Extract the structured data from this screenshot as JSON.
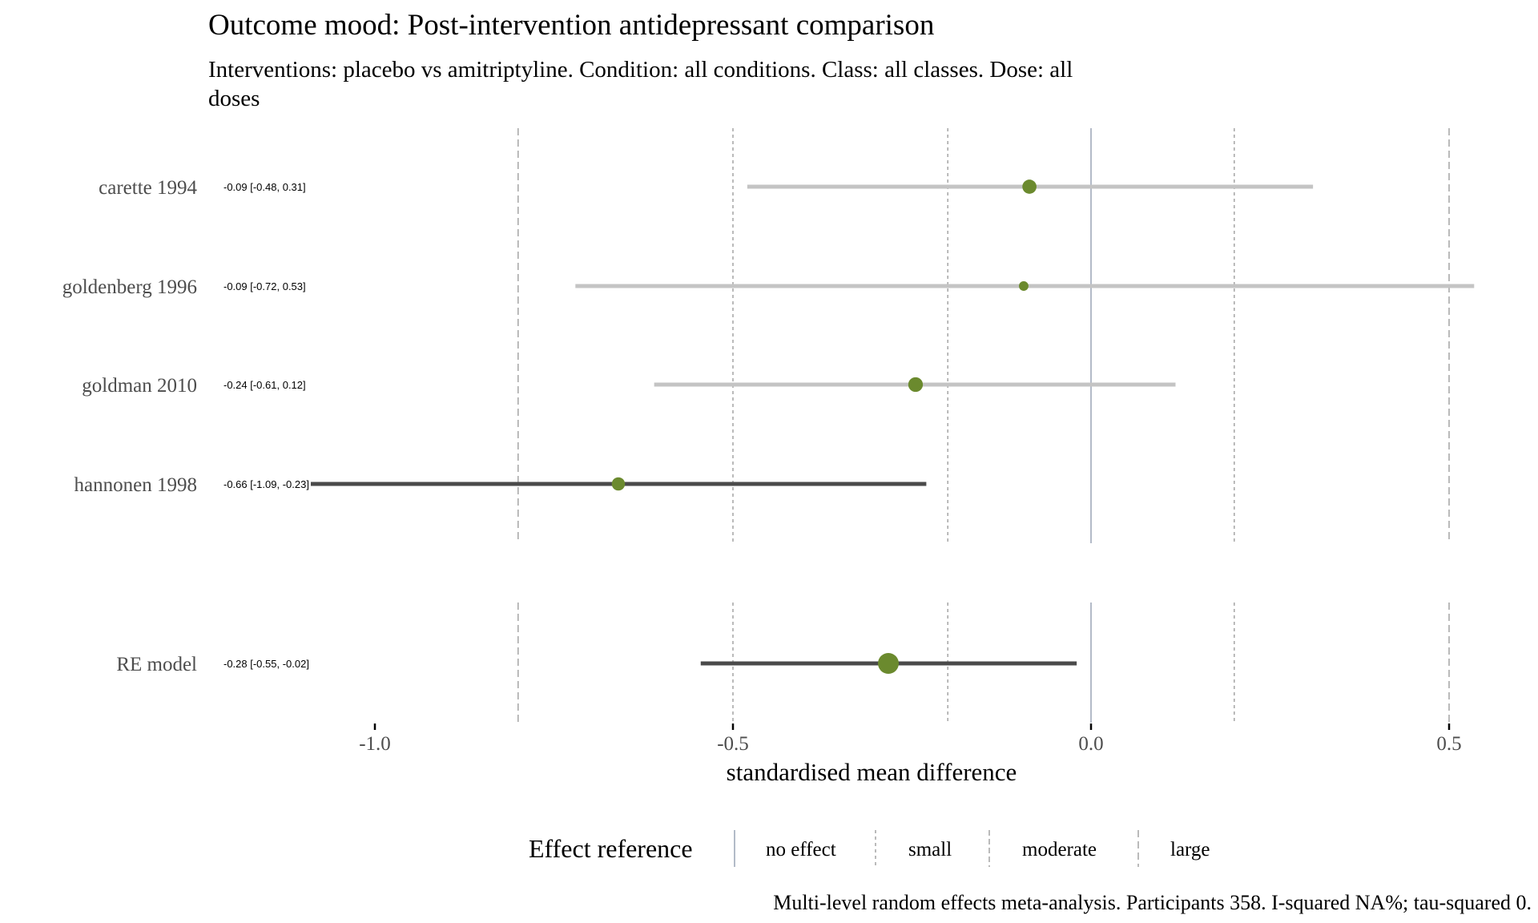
{
  "chart_data": {
    "type": "forest",
    "title": "Outcome mood: Post-intervention antidepressant comparison",
    "subtitle_lines": [
      "Interventions: placebo vs amitriptyline. Condition: all conditions. Class: all classes. Dose: all",
      "doses"
    ],
    "xlabel": "standardised mean difference",
    "xlim": [
      -1.2,
      0.55
    ],
    "x_ticks": [
      {
        "value": -1.0,
        "label": "-1.0"
      },
      {
        "value": -0.5,
        "label": "-0.5"
      },
      {
        "value": 0.0,
        "label": "0.0"
      },
      {
        "value": 0.5,
        "label": "0.5"
      }
    ],
    "reference_lines": [
      {
        "value": 0.0,
        "kind": "no effect"
      },
      {
        "value": -0.2,
        "kind": "small"
      },
      {
        "value": 0.2,
        "kind": "small"
      },
      {
        "value": -0.5,
        "kind": "moderate"
      },
      {
        "value": 0.5,
        "kind": "large"
      },
      {
        "value": -0.8,
        "kind": "large"
      }
    ],
    "studies": [
      {
        "name": "carette 1994",
        "label": "-0.09 [-0.48, 0.31]",
        "estimate": -0.086,
        "lower": -0.48,
        "upper": 0.31,
        "weight": 3,
        "significant": false
      },
      {
        "name": "goldenberg 1996",
        "label": "-0.09 [-0.72, 0.53]",
        "estimate": -0.094,
        "lower": -0.72,
        "upper": 0.535,
        "weight": 1,
        "significant": false
      },
      {
        "name": "goldman 2010",
        "label": "-0.24 [-0.61, 0.12]",
        "estimate": -0.245,
        "lower": -0.61,
        "upper": 0.118,
        "weight": 3.2,
        "significant": false
      },
      {
        "name": "hannonen 1998",
        "label": "-0.66 [-1.09, -0.23]",
        "estimate": -0.66,
        "lower": -1.09,
        "upper": -0.23,
        "weight": 2.6,
        "significant": true
      }
    ],
    "pooled": {
      "name": "RE model",
      "label": "-0.28 [-0.55, -0.02]",
      "estimate": -0.283,
      "lower": -0.545,
      "upper": -0.02,
      "significant": true
    },
    "legend": {
      "title": "Effect reference",
      "items": [
        "no effect",
        "small",
        "moderate",
        "large"
      ],
      "placement": "bottom"
    },
    "caption": "Multi-level random effects meta-analysis. Participants 358. I-squared NA%; tau-squared 0.",
    "colors": {
      "point": "#6b8a2e",
      "ci_significant": "#4a4a4a",
      "ci_nonsignificant": "#c4c4c4",
      "zero_line": "#8a96ab",
      "ref_line": "#aaaaaa",
      "text": "#000000",
      "label_text": "#4d4d4d"
    }
  }
}
